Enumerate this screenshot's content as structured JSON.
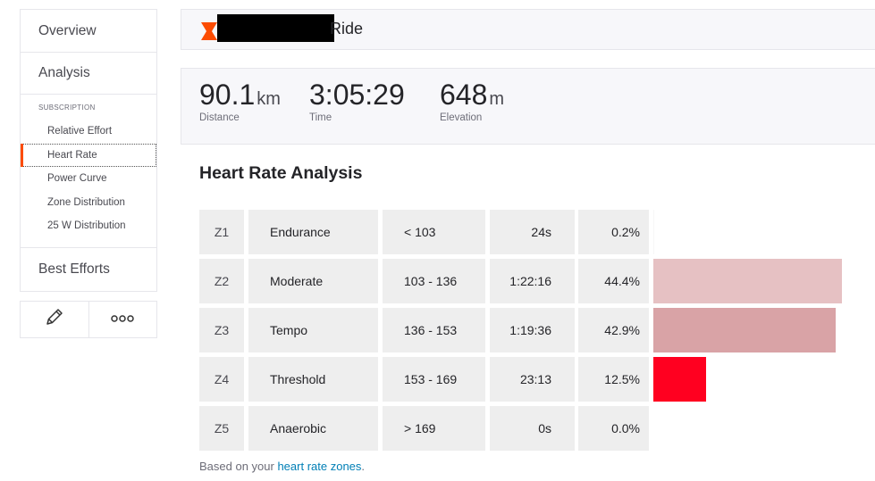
{
  "sidebar": {
    "overview_label": "Overview",
    "analysis_label": "Analysis",
    "subscription_heading": "SUBSCRIPTION",
    "items": [
      {
        "label": "Relative Effort"
      },
      {
        "label": "Heart Rate"
      },
      {
        "label": "Power Curve"
      },
      {
        "label": "Zone Distribution"
      },
      {
        "label": "25 W Distribution"
      }
    ],
    "best_efforts_label": "Best Efforts",
    "actions": [
      "pencil-icon",
      "more-icon"
    ]
  },
  "activity": {
    "title_suffix": "Ride",
    "sport_icon": "ride-icon",
    "accent_color": "#fc4c02"
  },
  "stats": {
    "distance": {
      "value": "90.1",
      "unit": "km",
      "label": "Distance"
    },
    "time": {
      "value": "3:05:29",
      "label": "Time"
    },
    "elevation": {
      "value": "648",
      "unit": "m",
      "label": "Elevation"
    }
  },
  "heart_rate": {
    "title": "Heart Rate Analysis",
    "zones": [
      {
        "zone": "Z1",
        "name": "Endurance",
        "range": "< 103",
        "time": "24s",
        "percent": "0.2%",
        "fraction": 0.002,
        "color": "#f7f7f7"
      },
      {
        "zone": "Z2",
        "name": "Moderate",
        "range": "103 - 136",
        "time": "1:22:16",
        "percent": "44.4%",
        "fraction": 0.444,
        "color": "#e6c1c3"
      },
      {
        "zone": "Z3",
        "name": "Tempo",
        "range": "136 - 153",
        "time": "1:19:36",
        "percent": "42.9%",
        "fraction": 0.429,
        "color": "#d9a3a6"
      },
      {
        "zone": "Z4",
        "name": "Threshold",
        "range": "153 - 169",
        "time": "23:13",
        "percent": "12.5%",
        "fraction": 0.125,
        "color": "#ff0020"
      },
      {
        "zone": "Z5",
        "name": "Anaerobic",
        "range": "> 169",
        "time": "0s",
        "percent": "0.0%",
        "fraction": 0.0,
        "color": "#f7f7f7"
      }
    ],
    "footnote_prefix": "Based on your ",
    "footnote_link": "heart rate zones",
    "footnote_suffix": "."
  }
}
